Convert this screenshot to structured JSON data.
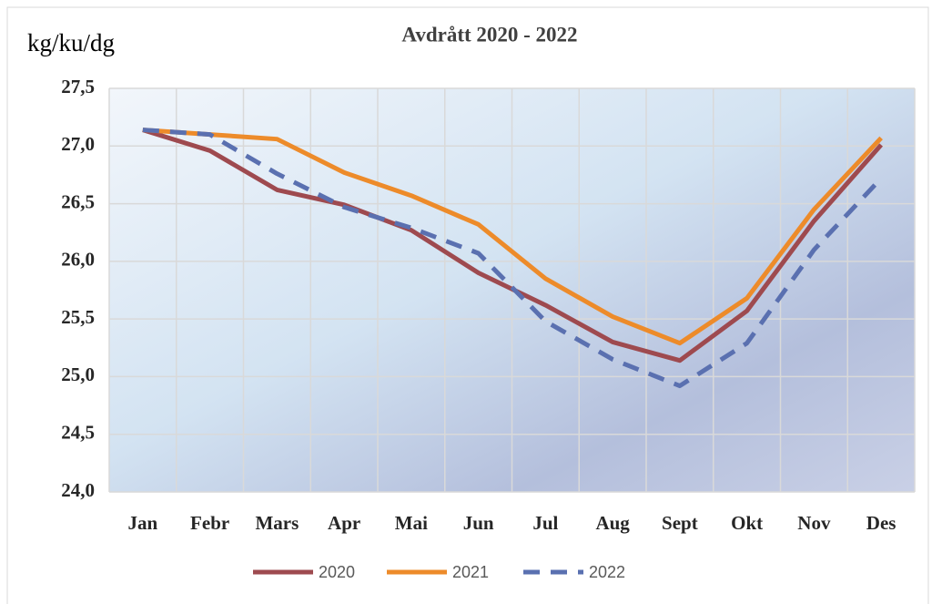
{
  "chart_data": {
    "type": "line",
    "title": "Avdrått 2020 - 2022",
    "y_label": "kg/ku/dg",
    "categories": [
      "Jan",
      "Febr",
      "Mars",
      "Apr",
      "Mai",
      "Jun",
      "Jul",
      "Aug",
      "Sept",
      "Okt",
      "Nov",
      "Des"
    ],
    "series": [
      {
        "name": "2020",
        "color": "#9e4a4f",
        "dashed": false,
        "values": [
          27.14,
          26.96,
          26.62,
          26.49,
          26.27,
          25.9,
          25.62,
          25.3,
          25.14,
          25.57,
          26.35,
          27.01
        ]
      },
      {
        "name": "2021",
        "color": "#ed8b2a",
        "dashed": false,
        "values": [
          27.14,
          27.1,
          27.06,
          26.77,
          26.57,
          26.32,
          25.85,
          25.52,
          25.29,
          25.68,
          26.45,
          27.07
        ]
      },
      {
        "name": "2022",
        "color": "#5a70b0",
        "dashed": true,
        "values": [
          27.14,
          27.1,
          26.76,
          26.47,
          26.29,
          26.07,
          25.48,
          25.15,
          24.92,
          25.29,
          26.1,
          26.72
        ]
      }
    ],
    "ylim": [
      24.0,
      27.5
    ],
    "yticks": [
      {
        "value": 24.0,
        "label": "24,0"
      },
      {
        "value": 24.5,
        "label": "24,5"
      },
      {
        "value": 25.0,
        "label": "25,0"
      },
      {
        "value": 25.5,
        "label": "25,5"
      },
      {
        "value": 26.0,
        "label": "26,0"
      },
      {
        "value": 26.5,
        "label": "26,5"
      },
      {
        "value": 27.0,
        "label": "27,0"
      },
      {
        "value": 27.5,
        "label": "27,5"
      }
    ],
    "grid": true,
    "legend": "bottom"
  }
}
